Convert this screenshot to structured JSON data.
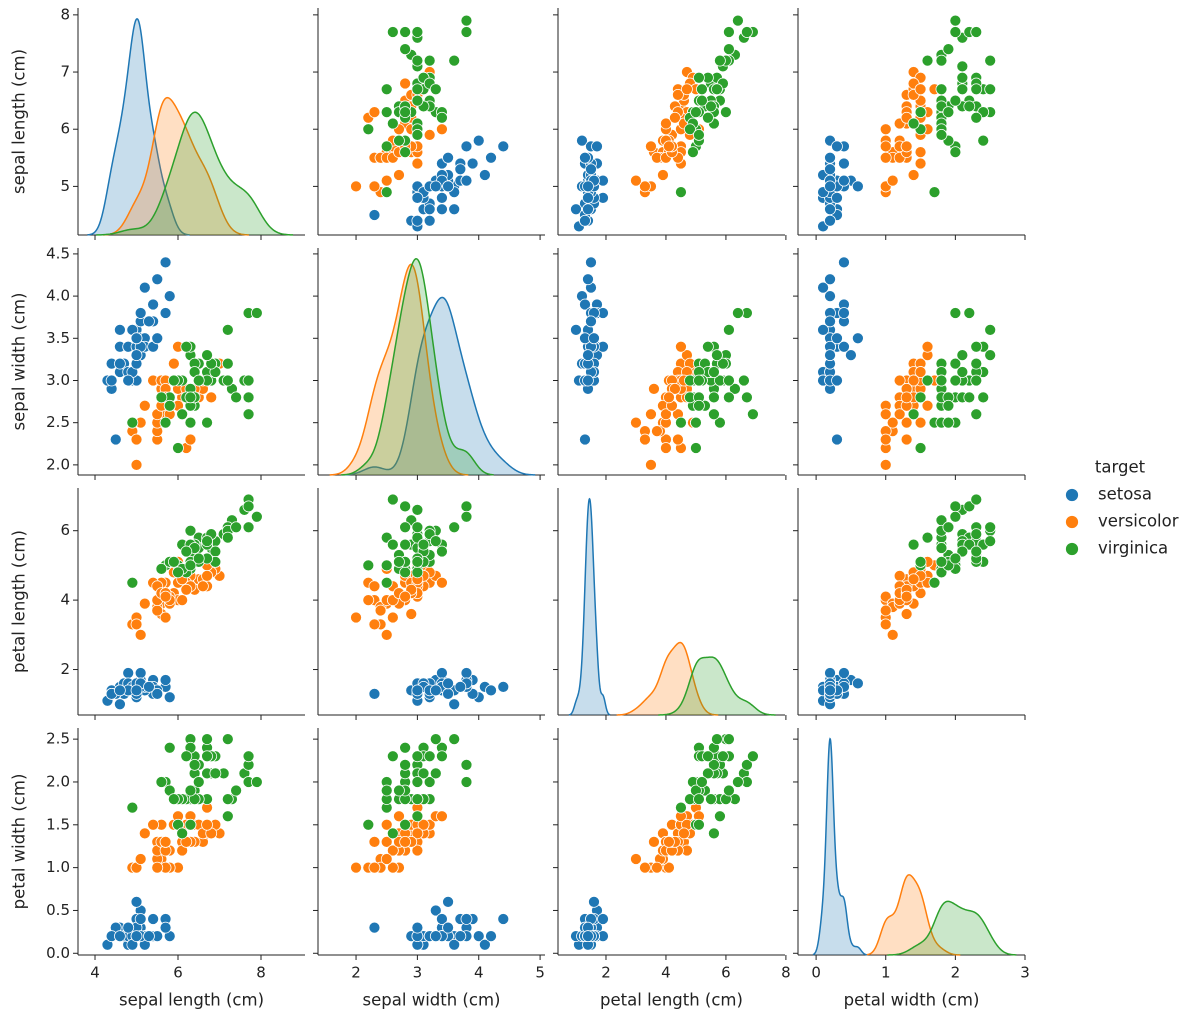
{
  "chart_data": {
    "type": "pairplot",
    "legend_title": "target",
    "variables": [
      {
        "label": "sepal length (cm)",
        "xlim": [
          3.59,
          9.06
        ],
        "xticks": [
          4,
          6,
          8
        ],
        "ylim": [
          4.15,
          8.12
        ],
        "yticks": [
          5,
          6,
          7,
          8
        ]
      },
      {
        "label": "sepal width (cm)",
        "xlim": [
          1.38,
          5.08
        ],
        "xticks": [
          2,
          3,
          4,
          5
        ],
        "ylim": [
          1.88,
          4.57
        ],
        "yticks": [
          {
            "value": 2,
            "label": "2.0"
          },
          2.5,
          {
            "value": 3,
            "label": "3.0"
          },
          3.5,
          {
            "value": 4,
            "label": "4.0"
          },
          4.5
        ]
      },
      {
        "label": "petal length (cm)",
        "xlim": [
          0.4,
          7.97
        ],
        "xticks": [
          2,
          4,
          6,
          8
        ],
        "ylim": [
          0.69,
          7.23
        ],
        "yticks": [
          2,
          4,
          6
        ]
      },
      {
        "label": "petal width (cm)",
        "xlim": [
          -0.26,
          3.0
        ],
        "xticks": [
          0,
          1,
          2,
          3
        ],
        "ylim": [
          -0.02,
          2.63
        ],
        "yticks": [
          {
            "value": 0,
            "label": "0.0"
          },
          0.5,
          {
            "value": 1,
            "label": "1.0"
          },
          1.5,
          {
            "value": 2,
            "label": "2.0"
          },
          2.5
        ]
      }
    ],
    "series": [
      {
        "name": "setosa",
        "color": "#1f77b4",
        "columns": [
          [
            5.1,
            4.9,
            4.7,
            4.6,
            5.0,
            5.4,
            4.6,
            5.0,
            4.4,
            4.9,
            5.4,
            4.8,
            4.8,
            4.3,
            5.8,
            5.7,
            5.4,
            5.1,
            5.7,
            5.1,
            5.4,
            5.1,
            4.6,
            5.1,
            4.8,
            5.0,
            5.0,
            5.2,
            5.2,
            4.7,
            4.8,
            5.4,
            5.2,
            5.5,
            4.9,
            5.0,
            5.5,
            4.9,
            4.4,
            5.1,
            5.0,
            4.5,
            4.4,
            5.0,
            5.1,
            4.8,
            5.1,
            4.6,
            5.3,
            5.0
          ],
          [
            3.5,
            3.0,
            3.2,
            3.1,
            3.6,
            3.9,
            3.4,
            3.4,
            2.9,
            3.1,
            3.7,
            3.4,
            3.0,
            3.0,
            4.0,
            4.4,
            3.9,
            3.5,
            3.8,
            3.8,
            3.4,
            3.7,
            3.6,
            3.3,
            3.4,
            3.0,
            3.4,
            3.5,
            3.4,
            3.2,
            3.1,
            3.4,
            4.1,
            4.2,
            3.1,
            3.2,
            3.5,
            3.6,
            3.0,
            3.4,
            3.5,
            2.3,
            3.2,
            3.5,
            3.8,
            3.0,
            3.8,
            3.2,
            3.7,
            3.3
          ],
          [
            1.4,
            1.4,
            1.3,
            1.5,
            1.4,
            1.7,
            1.4,
            1.5,
            1.4,
            1.5,
            1.5,
            1.6,
            1.4,
            1.1,
            1.2,
            1.5,
            1.3,
            1.4,
            1.7,
            1.5,
            1.7,
            1.5,
            1.0,
            1.7,
            1.9,
            1.6,
            1.6,
            1.5,
            1.4,
            1.6,
            1.6,
            1.5,
            1.5,
            1.4,
            1.5,
            1.2,
            1.3,
            1.4,
            1.3,
            1.5,
            1.3,
            1.3,
            1.3,
            1.6,
            1.9,
            1.4,
            1.6,
            1.4,
            1.5,
            1.4
          ],
          [
            0.2,
            0.2,
            0.2,
            0.2,
            0.2,
            0.4,
            0.3,
            0.2,
            0.2,
            0.1,
            0.2,
            0.2,
            0.1,
            0.1,
            0.2,
            0.4,
            0.4,
            0.3,
            0.3,
            0.3,
            0.2,
            0.4,
            0.2,
            0.5,
            0.2,
            0.2,
            0.4,
            0.2,
            0.2,
            0.2,
            0.2,
            0.4,
            0.1,
            0.2,
            0.2,
            0.2,
            0.2,
            0.1,
            0.2,
            0.2,
            0.3,
            0.3,
            0.2,
            0.6,
            0.4,
            0.3,
            0.2,
            0.2,
            0.2,
            0.2
          ]
        ]
      },
      {
        "name": "versicolor",
        "color": "#ff7f0e",
        "columns": [
          [
            7.0,
            6.4,
            6.9,
            5.5,
            6.5,
            5.7,
            6.3,
            4.9,
            6.6,
            5.2,
            5.0,
            5.9,
            6.0,
            6.1,
            5.6,
            6.7,
            5.6,
            5.8,
            6.2,
            5.6,
            5.9,
            6.1,
            6.3,
            6.1,
            6.4,
            6.6,
            6.8,
            6.7,
            6.0,
            5.7,
            5.5,
            5.5,
            5.8,
            6.0,
            5.4,
            6.0,
            6.7,
            6.3,
            5.6,
            5.5,
            5.5,
            6.1,
            5.8,
            5.0,
            5.6,
            5.7,
            5.7,
            6.2,
            5.1,
            5.7
          ],
          [
            3.2,
            3.2,
            3.1,
            2.3,
            2.8,
            2.8,
            3.3,
            2.4,
            2.9,
            2.7,
            2.0,
            3.0,
            2.2,
            2.9,
            2.9,
            3.1,
            3.0,
            2.7,
            2.2,
            2.5,
            3.2,
            2.8,
            2.5,
            2.8,
            2.9,
            3.0,
            2.8,
            3.0,
            2.9,
            2.6,
            2.4,
            2.4,
            2.7,
            2.7,
            3.0,
            3.4,
            3.1,
            2.3,
            3.0,
            2.5,
            2.6,
            3.0,
            2.6,
            2.3,
            2.7,
            3.0,
            2.9,
            2.9,
            2.5,
            2.8
          ],
          [
            4.7,
            4.5,
            4.9,
            4.0,
            4.6,
            4.5,
            4.7,
            3.3,
            4.6,
            3.9,
            3.5,
            4.2,
            4.0,
            4.7,
            3.6,
            4.4,
            4.5,
            4.1,
            4.5,
            3.9,
            4.8,
            4.0,
            4.9,
            4.7,
            4.3,
            4.4,
            4.8,
            5.0,
            4.5,
            3.5,
            3.8,
            3.7,
            3.9,
            5.1,
            4.5,
            4.5,
            4.7,
            4.4,
            4.1,
            4.0,
            4.4,
            4.6,
            4.0,
            3.3,
            4.2,
            4.2,
            4.2,
            4.3,
            3.0,
            4.1
          ],
          [
            1.4,
            1.5,
            1.5,
            1.3,
            1.5,
            1.3,
            1.6,
            1.0,
            1.3,
            1.4,
            1.0,
            1.5,
            1.0,
            1.4,
            1.3,
            1.4,
            1.5,
            1.0,
            1.5,
            1.1,
            1.8,
            1.3,
            1.5,
            1.2,
            1.3,
            1.4,
            1.4,
            1.7,
            1.5,
            1.0,
            1.1,
            1.0,
            1.2,
            1.6,
            1.5,
            1.6,
            1.5,
            1.3,
            1.3,
            1.3,
            1.2,
            1.4,
            1.2,
            1.0,
            1.3,
            1.2,
            1.3,
            1.3,
            1.1,
            1.3
          ]
        ]
      },
      {
        "name": "virginica",
        "color": "#2ca02c",
        "columns": [
          [
            6.3,
            5.8,
            7.1,
            6.3,
            6.5,
            7.6,
            4.9,
            7.3,
            6.7,
            7.2,
            6.5,
            6.4,
            6.8,
            5.7,
            5.8,
            6.4,
            6.5,
            7.7,
            7.7,
            6.0,
            6.9,
            5.6,
            7.7,
            6.3,
            6.7,
            7.2,
            6.2,
            6.1,
            6.4,
            7.2,
            7.4,
            7.9,
            6.4,
            6.3,
            6.1,
            7.7,
            6.3,
            6.4,
            6.0,
            6.9,
            6.7,
            6.9,
            5.8,
            6.8,
            6.7,
            6.7,
            6.3,
            6.5,
            6.2,
            5.9
          ],
          [
            3.3,
            2.7,
            3.0,
            2.9,
            3.0,
            3.0,
            2.5,
            2.9,
            2.5,
            3.6,
            3.2,
            2.7,
            3.0,
            2.5,
            2.8,
            3.2,
            3.0,
            3.8,
            2.6,
            2.2,
            3.2,
            2.8,
            2.8,
            2.7,
            3.3,
            3.2,
            2.8,
            3.0,
            2.8,
            3.0,
            2.8,
            3.8,
            2.8,
            2.8,
            2.6,
            3.0,
            3.4,
            3.1,
            3.0,
            3.1,
            3.1,
            3.1,
            2.7,
            3.2,
            3.3,
            3.0,
            2.5,
            3.0,
            3.4,
            3.0
          ],
          [
            6.0,
            5.1,
            5.9,
            5.6,
            5.8,
            6.6,
            4.5,
            6.3,
            5.8,
            6.1,
            5.1,
            5.3,
            5.5,
            5.0,
            5.1,
            5.3,
            5.5,
            6.7,
            6.9,
            5.0,
            5.7,
            4.9,
            6.7,
            4.9,
            5.7,
            6.0,
            4.8,
            4.9,
            5.6,
            5.8,
            6.1,
            6.4,
            5.6,
            5.1,
            5.6,
            6.1,
            5.6,
            5.5,
            4.8,
            5.4,
            5.6,
            5.1,
            5.1,
            5.9,
            5.7,
            5.2,
            5.0,
            5.2,
            5.4,
            5.1
          ],
          [
            2.5,
            1.9,
            2.1,
            1.8,
            2.2,
            2.1,
            1.7,
            1.8,
            1.8,
            2.5,
            2.0,
            1.9,
            2.1,
            2.0,
            2.4,
            2.3,
            1.8,
            2.2,
            2.3,
            1.5,
            2.3,
            2.0,
            2.0,
            1.8,
            2.1,
            1.8,
            1.8,
            1.8,
            2.1,
            1.6,
            1.9,
            2.0,
            2.2,
            1.5,
            1.4,
            2.3,
            2.4,
            1.8,
            1.8,
            2.1,
            2.4,
            2.3,
            1.9,
            2.3,
            2.5,
            2.3,
            1.9,
            2.0,
            2.3,
            1.8
          ]
        ]
      }
    ]
  }
}
